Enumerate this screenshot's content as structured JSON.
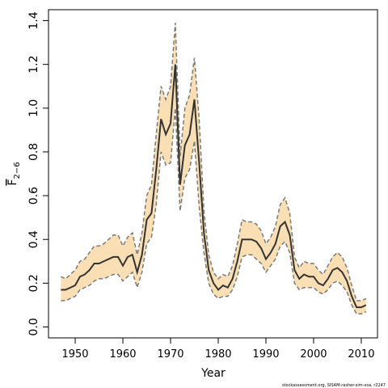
{
  "chart_data": {
    "type": "line",
    "xlabel": "Year",
    "ylabel": {
      "main": "F",
      "sub": "2−6"
    },
    "footnote": "stockassessment.org, SISAM-rasher-sim-xsa, r2247",
    "x": [
      1947,
      1948,
      1949,
      1950,
      1951,
      1952,
      1953,
      1954,
      1955,
      1956,
      1957,
      1958,
      1959,
      1960,
      1961,
      1962,
      1963,
      1964,
      1965,
      1966,
      1967,
      1968,
      1969,
      1970,
      1971,
      1972,
      1973,
      1974,
      1975,
      1976,
      1977,
      1978,
      1979,
      1980,
      1981,
      1982,
      1983,
      1984,
      1985,
      1986,
      1987,
      1988,
      1989,
      1990,
      1991,
      1992,
      1993,
      1994,
      1995,
      1996,
      1997,
      1998,
      1999,
      2000,
      2001,
      2002,
      2003,
      2004,
      2005,
      2006,
      2007,
      2008,
      2009,
      2010,
      2011
    ],
    "values": [
      0.17,
      0.17,
      0.18,
      0.19,
      0.23,
      0.24,
      0.26,
      0.29,
      0.29,
      0.3,
      0.31,
      0.32,
      0.32,
      0.28,
      0.32,
      0.33,
      0.25,
      0.33,
      0.49,
      0.52,
      0.72,
      0.95,
      0.88,
      0.93,
      1.2,
      0.65,
      0.83,
      0.88,
      1.04,
      0.75,
      0.43,
      0.26,
      0.2,
      0.17,
      0.19,
      0.18,
      0.22,
      0.3,
      0.4,
      0.4,
      0.4,
      0.39,
      0.36,
      0.31,
      0.34,
      0.38,
      0.46,
      0.48,
      0.42,
      0.26,
      0.22,
      0.24,
      0.23,
      0.23,
      0.2,
      0.19,
      0.22,
      0.26,
      0.27,
      0.25,
      0.21,
      0.14,
      0.09,
      0.09,
      0.1
    ],
    "lower": [
      0.12,
      0.12,
      0.13,
      0.14,
      0.17,
      0.18,
      0.19,
      0.21,
      0.22,
      0.22,
      0.23,
      0.24,
      0.24,
      0.21,
      0.23,
      0.25,
      0.18,
      0.25,
      0.38,
      0.41,
      0.56,
      0.8,
      0.74,
      0.75,
      1.0,
      0.53,
      0.68,
      0.72,
      0.85,
      0.55,
      0.34,
      0.2,
      0.15,
      0.13,
      0.14,
      0.14,
      0.17,
      0.23,
      0.32,
      0.33,
      0.33,
      0.31,
      0.29,
      0.25,
      0.28,
      0.31,
      0.37,
      0.39,
      0.34,
      0.2,
      0.17,
      0.18,
      0.18,
      0.18,
      0.16,
      0.15,
      0.17,
      0.2,
      0.21,
      0.19,
      0.16,
      0.1,
      0.06,
      0.06,
      0.07
    ],
    "upper": [
      0.23,
      0.22,
      0.24,
      0.26,
      0.3,
      0.31,
      0.34,
      0.37,
      0.37,
      0.38,
      0.4,
      0.42,
      0.42,
      0.37,
      0.41,
      0.43,
      0.33,
      0.43,
      0.6,
      0.65,
      0.88,
      1.1,
      1.04,
      1.1,
      1.39,
      0.78,
      1.0,
      1.06,
      1.23,
      0.95,
      0.53,
      0.33,
      0.25,
      0.22,
      0.24,
      0.23,
      0.28,
      0.38,
      0.49,
      0.48,
      0.48,
      0.47,
      0.44,
      0.38,
      0.41,
      0.46,
      0.56,
      0.59,
      0.52,
      0.32,
      0.27,
      0.3,
      0.29,
      0.29,
      0.26,
      0.24,
      0.28,
      0.32,
      0.34,
      0.32,
      0.27,
      0.19,
      0.12,
      0.12,
      0.13
    ],
    "color": "#333333",
    "band_color": "#f9dfb3",
    "band_line_color": "#7a7a7a",
    "xlim": [
      1944.4,
      2013.4
    ],
    "ylim": [
      -0.05,
      1.45
    ],
    "xticks": [
      1950,
      1960,
      1970,
      1980,
      1990,
      2000,
      2010
    ],
    "yticks": [
      {
        "value": 0,
        "label": "0.0"
      },
      {
        "value": 0.2,
        "label": "0.2"
      },
      {
        "value": 0.4,
        "label": "0.4"
      },
      {
        "value": 0.6,
        "label": "0.6"
      },
      {
        "value": 0.8,
        "label": "0.8"
      },
      {
        "value": 1.0,
        "label": "1.0"
      },
      {
        "value": 1.2,
        "label": "1.2"
      },
      {
        "value": 1.4,
        "label": "1.4"
      }
    ]
  }
}
